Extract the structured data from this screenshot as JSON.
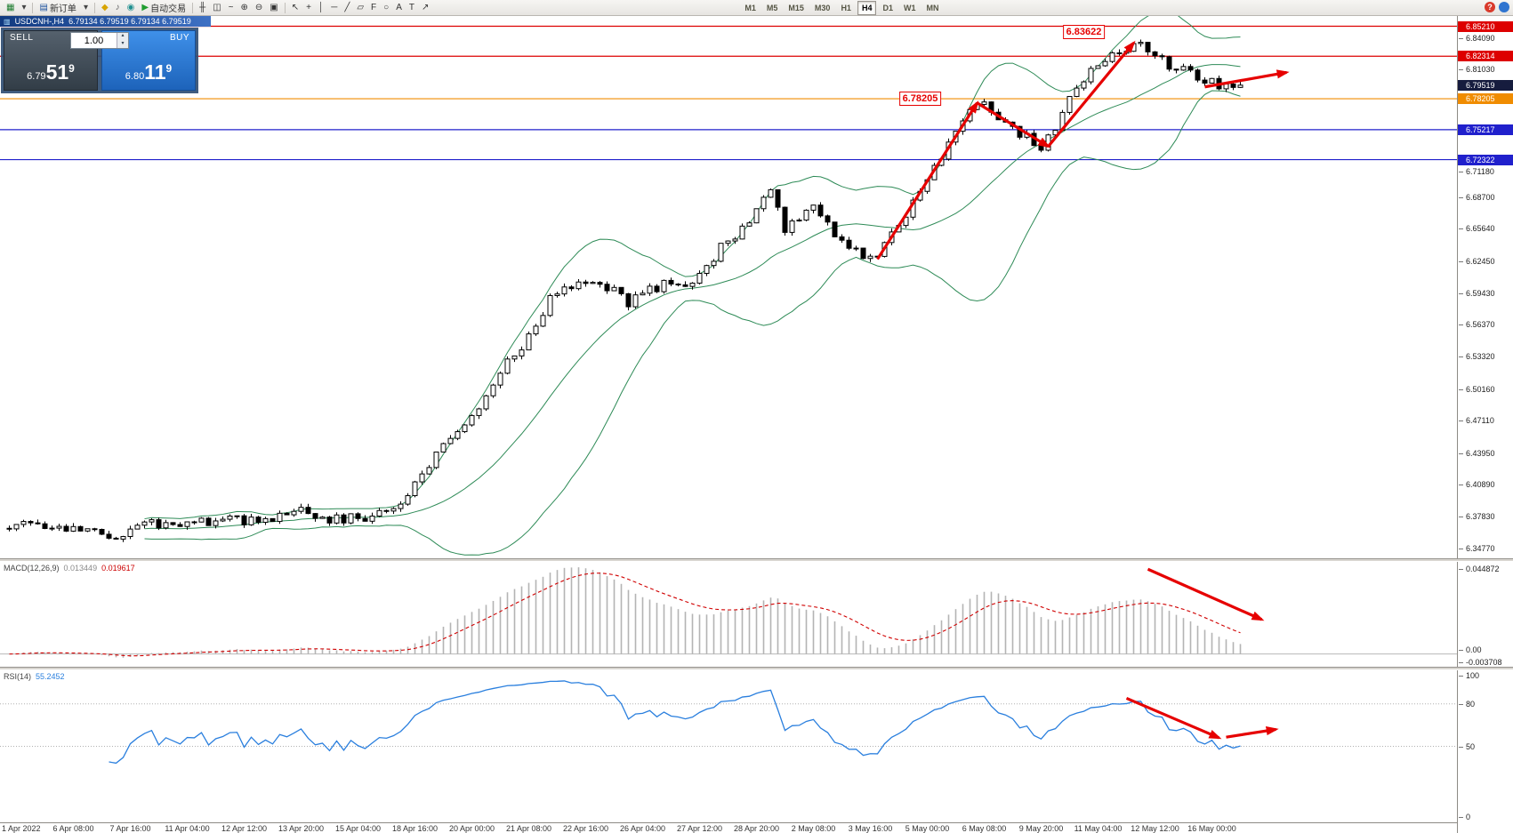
{
  "toolbar": {
    "left_groups": [
      {
        "name": "charts",
        "items": [
          {
            "name": "new-chart-button",
            "glyph": "▦",
            "color": "#1c7c2e"
          },
          {
            "name": "profiles-dropdown-button",
            "glyph": "▾",
            "color": "#444444"
          }
        ]
      },
      {
        "name": "trading",
        "items": [
          {
            "name": "new-order-button",
            "glyph": "▤",
            "color": "#1a4f9c",
            "label": "新订单"
          },
          {
            "name": "new-order-dropdown-button",
            "glyph": "▾",
            "color": "#444444"
          }
        ]
      },
      {
        "name": "services",
        "items": [
          {
            "name": "alerts-button",
            "glyph": "◆",
            "color": "#d8a400"
          },
          {
            "name": "sounds-button",
            "glyph": "♪",
            "color": "#666666"
          },
          {
            "name": "community-button",
            "glyph": "◉",
            "color": "#1f8f8f"
          },
          {
            "name": "autotrading-button",
            "glyph": "▶",
            "color": "#1f9d2f",
            "label": "自动交易"
          }
        ]
      },
      {
        "name": "chart-view",
        "items": [
          {
            "name": "bar-chart-button",
            "glyph": "╫",
            "color": "#333333"
          },
          {
            "name": "candlestick-chart-button",
            "glyph": "◫",
            "color": "#333333"
          },
          {
            "name": "line-chart-button",
            "glyph": "~",
            "color": "#333333"
          },
          {
            "name": "zoom-in-button",
            "glyph": "⊕",
            "color": "#333333"
          },
          {
            "name": "zoom-out-button",
            "glyph": "⊖",
            "color": "#333333"
          },
          {
            "name": "tile-windows-button",
            "glyph": "▣",
            "color": "#333333"
          }
        ]
      },
      {
        "name": "objects",
        "items": [
          {
            "name": "cursor-button",
            "glyph": "↖",
            "color": "#333333"
          },
          {
            "name": "crosshair-button",
            "glyph": "+",
            "color": "#333333"
          },
          {
            "name": "vertical-line-button",
            "glyph": "│",
            "color": "#333333"
          },
          {
            "name": "horizontal-line-button",
            "glyph": "─",
            "color": "#333333"
          },
          {
            "name": "trendline-button",
            "glyph": "╱",
            "color": "#333333"
          },
          {
            "name": "channel-button",
            "glyph": "▱",
            "color": "#333333"
          },
          {
            "name": "fibonacci-button",
            "glyph": "F",
            "color": "#333333"
          },
          {
            "name": "shapes-button",
            "glyph": "○",
            "color": "#333333"
          },
          {
            "name": "text-button",
            "glyph": "A",
            "color": "#333333"
          },
          {
            "name": "label-button",
            "glyph": "T",
            "color": "#333333"
          },
          {
            "name": "arrows-button",
            "glyph": "↗",
            "color": "#333333"
          }
        ]
      }
    ],
    "timeframes": [
      "M1",
      "M5",
      "M15",
      "M30",
      "H1",
      "H4",
      "D1",
      "W1",
      "MN"
    ],
    "active_timeframe": "H4",
    "right_icons": [
      {
        "name": "help-button",
        "glyph": "?",
        "bg": "#d93a2b"
      },
      {
        "name": "chat-button",
        "glyph": "",
        "bg": "#2f74d0"
      }
    ]
  },
  "quote_bar": {
    "icon": "▥",
    "symbol_period": "USDCNH-,H4",
    "ohlc": "6.79134 6.79519 6.79134 6.79519"
  },
  "trade_panel": {
    "sell_label": "SELL",
    "buy_label": "BUY",
    "volume": "1.00",
    "spin_up": "▴",
    "spin_down": "▾",
    "sell_price_prefix": "6.79",
    "sell_price_big": "51",
    "sell_price_sup": "9",
    "buy_price_prefix": "6.80",
    "buy_price_big": "11",
    "buy_price_sup": "9"
  },
  "chart_data": {
    "type": "candlestick",
    "symbol": "USDCNH",
    "timeframe": "H4",
    "bars_total": 174,
    "last_close": 6.79519,
    "price_axis": {
      "min": 6.338,
      "max": 6.862,
      "ticks": [
        {
          "price": 6.8409,
          "label": "6.84090"
        },
        {
          "price": 6.8103,
          "label": "6.81030"
        },
        {
          "price": 6.7118,
          "label": "6.71180"
        },
        {
          "price": 6.687,
          "label": "6.68700"
        },
        {
          "price": 6.6564,
          "label": "6.65640"
        },
        {
          "price": 6.6245,
          "label": "6.62450"
        },
        {
          "price": 6.5943,
          "label": "6.59430"
        },
        {
          "price": 6.5637,
          "label": "6.56370"
        },
        {
          "price": 6.5332,
          "label": "6.53320"
        },
        {
          "price": 6.5016,
          "label": "6.50160"
        },
        {
          "price": 6.4711,
          "label": "6.47110"
        },
        {
          "price": 6.4395,
          "label": "6.43950"
        },
        {
          "price": 6.4089,
          "label": "6.40890"
        },
        {
          "price": 6.3783,
          "label": "6.37830"
        },
        {
          "price": 6.3477,
          "label": "6.34770"
        }
      ],
      "badges": [
        {
          "price": 6.8521,
          "label": "6.85210",
          "color": "#dd0000"
        },
        {
          "price": 6.82314,
          "label": "6.82314",
          "color": "#dd0000"
        },
        {
          "price": 6.79519,
          "label": "6.79519",
          "color": "#161c3e"
        },
        {
          "price": 6.78205,
          "label": "6.78205",
          "color": "#f08c00"
        },
        {
          "price": 6.75217,
          "label": "6.75217",
          "color": "#2020cc"
        },
        {
          "price": 6.72322,
          "label": "6.72322",
          "color": "#2020cc"
        }
      ]
    },
    "horizontal_lines": [
      {
        "price": 6.8521,
        "color": "#dd0000"
      },
      {
        "price": 6.82314,
        "color": "#dd0000"
      },
      {
        "price": 6.78205,
        "color": "#f08c00"
      },
      {
        "price": 6.75217,
        "color": "#2020cc"
      },
      {
        "price": 6.72322,
        "color": "#2020cc"
      }
    ],
    "time_labels": [
      "1 Apr 2022",
      "6 Apr 08:00",
      "7 Apr 16:00",
      "11 Apr 04:00",
      "12 Apr 12:00",
      "13 Apr 20:00",
      "15 Apr 04:00",
      "18 Apr 16:00",
      "20 Apr 00:00",
      "21 Apr 08:00",
      "22 Apr 16:00",
      "26 Apr 04:00",
      "27 Apr 12:00",
      "28 Apr 20:00",
      "2 May 08:00",
      "3 May 16:00",
      "5 May 00:00",
      "6 May 08:00",
      "9 May 20:00",
      "11 May 04:00",
      "12 May 12:00",
      "16 May 00:00"
    ],
    "first_label_bar": 1,
    "bars_per_label": 8,
    "price_path_anchors": [
      [
        0,
        6.37
      ],
      [
        6,
        6.372
      ],
      [
        10,
        6.366
      ],
      [
        14,
        6.356
      ],
      [
        17,
        6.366
      ],
      [
        21,
        6.372
      ],
      [
        25,
        6.37
      ],
      [
        29,
        6.376
      ],
      [
        33,
        6.374
      ],
      [
        37,
        6.378
      ],
      [
        41,
        6.384
      ],
      [
        45,
        6.376
      ],
      [
        49,
        6.378
      ],
      [
        53,
        6.381
      ],
      [
        55,
        6.392
      ],
      [
        57,
        6.408
      ],
      [
        60,
        6.438
      ],
      [
        63,
        6.458
      ],
      [
        65,
        6.472
      ],
      [
        67,
        6.498
      ],
      [
        70,
        6.528
      ],
      [
        73,
        6.552
      ],
      [
        76,
        6.588
      ],
      [
        79,
        6.602
      ],
      [
        82,
        6.608
      ],
      [
        85,
        6.598
      ],
      [
        87,
        6.585
      ],
      [
        89,
        6.595
      ],
      [
        92,
        6.603
      ],
      [
        95,
        6.598
      ],
      [
        97,
        6.612
      ],
      [
        100,
        6.638
      ],
      [
        103,
        6.658
      ],
      [
        105,
        6.672
      ],
      [
        107,
        6.692
      ],
      [
        109,
        6.655
      ],
      [
        111,
        6.668
      ],
      [
        113,
        6.675
      ],
      [
        115,
        6.66
      ],
      [
        117,
        6.646
      ],
      [
        119,
        6.636
      ],
      [
        121,
        6.625
      ],
      [
        123,
        6.641
      ],
      [
        125,
        6.66
      ],
      [
        127,
        6.684
      ],
      [
        129,
        6.701
      ],
      [
        131,
        6.728
      ],
      [
        133,
        6.752
      ],
      [
        135,
        6.77
      ],
      [
        137,
        6.78
      ],
      [
        139,
        6.764
      ],
      [
        141,
        6.754
      ],
      [
        143,
        6.744
      ],
      [
        145,
        6.734
      ],
      [
        147,
        6.756
      ],
      [
        149,
        6.78
      ],
      [
        151,
        6.801
      ],
      [
        153,
        6.815
      ],
      [
        155,
        6.825
      ],
      [
        157,
        6.832
      ],
      [
        159,
        6.836
      ],
      [
        161,
        6.824
      ],
      [
        163,
        6.814
      ],
      [
        165,
        6.809
      ],
      [
        167,
        6.801
      ],
      [
        169,
        6.798
      ],
      [
        171,
        6.794
      ],
      [
        173,
        6.7952
      ]
    ],
    "indicators": {
      "bollinger": {
        "period": 20,
        "deviation": 2
      },
      "macd": {
        "label": "MACD(12,26,9)",
        "value_main": "0.013449",
        "value_signal": "0.019617",
        "axis_top": "0.044872",
        "axis_zero": "0.00",
        "axis_bottom": "-0.003708"
      },
      "rsi": {
        "label": "RSI(14)",
        "value": "55.2452",
        "axis": [
          "100",
          "80",
          "50",
          "0"
        ],
        "levels": [
          80,
          50
        ]
      }
    },
    "annotations": [
      {
        "type": "price-label",
        "text": "6.78205",
        "bar": 128,
        "price": 6.782
      },
      {
        "type": "price-label",
        "text": "6.83622",
        "bar": 151,
        "price": 6.8465
      },
      {
        "type": "arrow",
        "panel": "main",
        "from": {
          "bar": 122,
          "price": 6.627
        },
        "to": {
          "bar": 136,
          "price": 6.778
        }
      },
      {
        "type": "arrow",
        "panel": "main",
        "from": {
          "bar": 136,
          "price": 6.778
        },
        "to": {
          "bar": 146,
          "price": 6.736
        }
      },
      {
        "type": "arrow",
        "panel": "main",
        "from": {
          "bar": 146,
          "price": 6.736
        },
        "to": {
          "bar": 158,
          "price": 6.836
        }
      },
      {
        "type": "arrow",
        "panel": "main",
        "from": {
          "bar": 168,
          "price": 6.7935
        },
        "to": {
          "bar": 179.5,
          "price": 6.8075
        }
      },
      {
        "type": "arrow",
        "panel": "macd",
        "from": {
          "bar": 160,
          "fy": 0.07
        },
        "to": {
          "bar": 176,
          "fy": 0.55
        }
      },
      {
        "type": "arrow",
        "panel": "rsi",
        "from": {
          "bar": 157,
          "value": 84
        },
        "to": {
          "bar": 170,
          "value": 56
        }
      },
      {
        "type": "arrow",
        "panel": "rsi",
        "from": {
          "bar": 171,
          "value": 56.5
        },
        "to": {
          "bar": 178,
          "value": 62
        }
      }
    ],
    "colors": {
      "bull": "#ffffff",
      "bear": "#000000",
      "candle_outline": "#000000",
      "bollinger": "#2e8b57",
      "macd_histogram": "#b4b4b4",
      "macd_signal": "#d00000",
      "rsi_line": "#2a7fde",
      "rsi_level": "#b0b0b0",
      "annotation": "#e60000"
    }
  }
}
